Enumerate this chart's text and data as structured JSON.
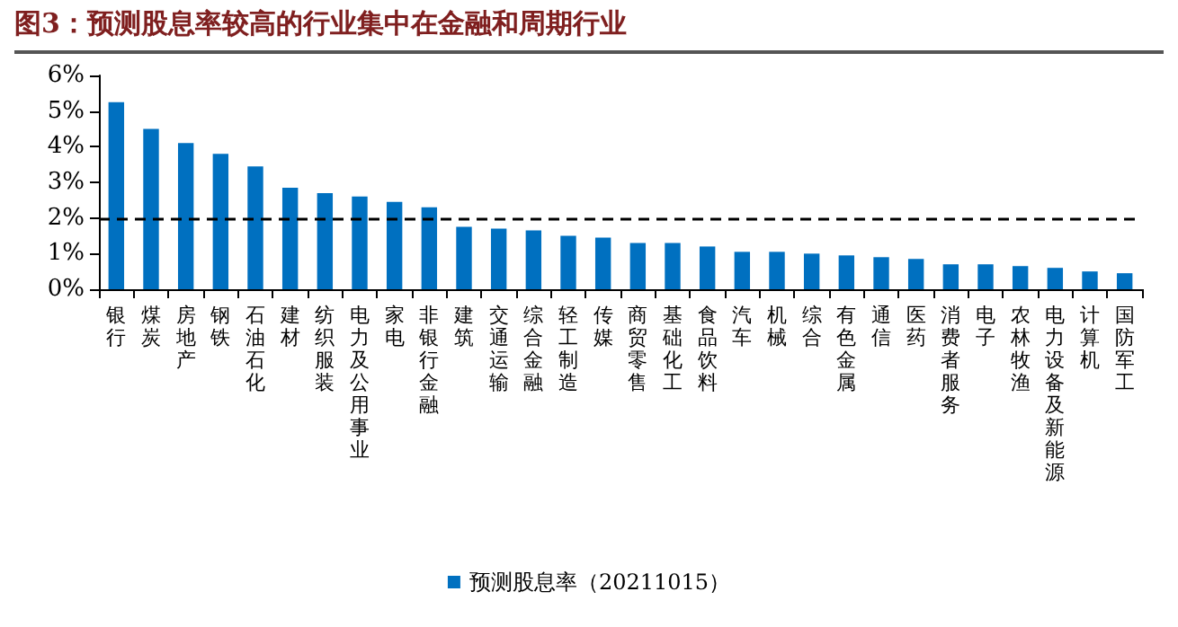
{
  "chart_data": {
    "type": "bar",
    "title": "图3：预测股息率较高的行业集中在金融和周期行业",
    "categories": [
      "银行",
      "煤炭",
      "房地产",
      "钢铁",
      "石油石化",
      "建材",
      "纺织服装",
      "电力及公用事业",
      "家电",
      "非银行金融",
      "建筑",
      "交通运输",
      "综合金融",
      "轻工制造",
      "传媒",
      "商贸零售",
      "基础化工",
      "食品饮料",
      "汽车",
      "机械",
      "综合",
      "有色金属",
      "通信",
      "医药",
      "消费者服务",
      "电子",
      "农林牧渔",
      "电力设备及新能源",
      "计算机",
      "国防军工"
    ],
    "series": [
      {
        "name": "预测股息率（20211015）",
        "color": "#0070c0",
        "values": [
          5.25,
          4.5,
          4.1,
          3.8,
          3.45,
          2.85,
          2.7,
          2.6,
          2.45,
          2.3,
          1.75,
          1.7,
          1.65,
          1.5,
          1.45,
          1.3,
          1.3,
          1.2,
          1.05,
          1.05,
          1.0,
          0.95,
          0.9,
          0.85,
          0.7,
          0.7,
          0.65,
          0.6,
          0.5,
          0.45
        ]
      }
    ],
    "ylim": [
      0,
      6
    ],
    "yticks": [
      {
        "value": 0,
        "label": "0%"
      },
      {
        "value": 1,
        "label": "1%"
      },
      {
        "value": 2,
        "label": "2%"
      },
      {
        "value": 3,
        "label": "3%"
      },
      {
        "value": 4,
        "label": "4%"
      },
      {
        "value": 5,
        "label": "5%"
      },
      {
        "value": 6,
        "label": "6%"
      }
    ],
    "ref_lines": [
      {
        "axis": "y",
        "value": 2,
        "color": "#000000",
        "line_style": "dashed"
      }
    ],
    "grid": false,
    "legend": "bottom"
  }
}
